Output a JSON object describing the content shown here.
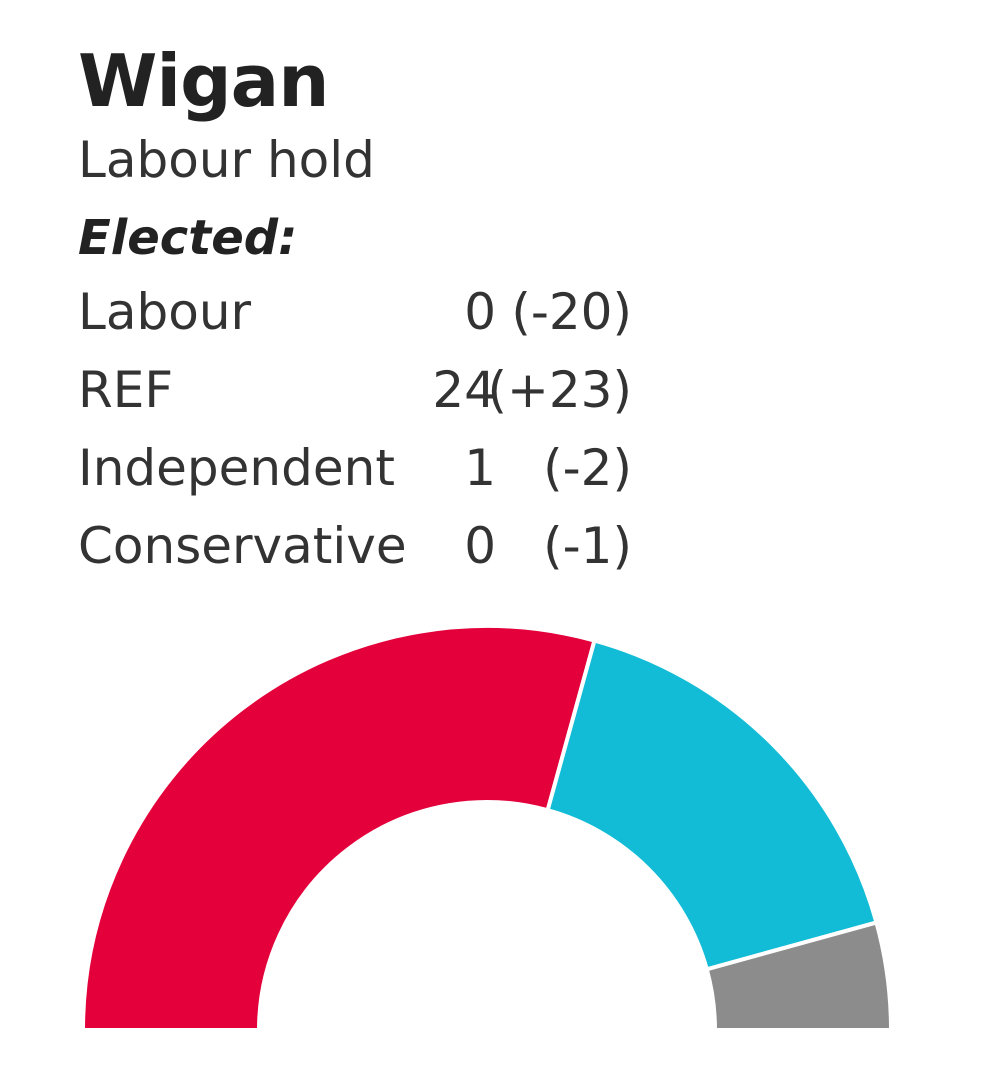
{
  "council": "Wigan",
  "result": "Labour hold",
  "elected_label": "Elected:",
  "results": [
    {
      "party": "Labour",
      "seats": "0",
      "change": "(-20)"
    },
    {
      "party": "REF",
      "seats": "24",
      "change": "(+23)"
    },
    {
      "party": "Independent",
      "seats": "1",
      "change": "(-2)"
    },
    {
      "party": "Conservative",
      "seats": "0",
      "change": "(-1)"
    }
  ],
  "chart_data": {
    "type": "pie",
    "variant": "half-donut",
    "title": "",
    "slices": [
      {
        "label": "Labour",
        "value": 41,
        "color": "#e4003b"
      },
      {
        "label": "REF",
        "value": 23,
        "color": "#12bcd6"
      },
      {
        "label": "Independent",
        "value": 6,
        "color": "#8c8c8c"
      }
    ]
  }
}
